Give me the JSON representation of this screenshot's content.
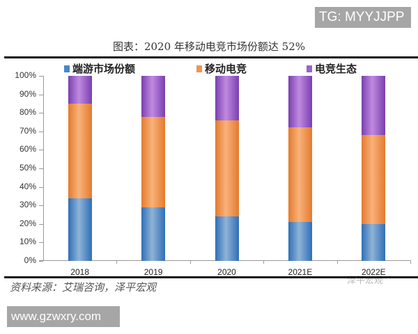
{
  "watermark_top": "TG: MYYJJPP",
  "watermark_bottom": "www.gzwxry.com",
  "watermark_logo": "泽平宏观",
  "source": "资料来源：艾瑞咨询，泽平宏观",
  "colors": {
    "client": "#4a86c8",
    "mobile": "#f0954f",
    "ecosystem": "#9b64c8"
  },
  "chart_data": {
    "type": "bar",
    "stacked": true,
    "title": "图表：2020 年移动电竞市场份额达 52%",
    "categories": [
      "2018",
      "2019",
      "2020",
      "2021E",
      "2022E"
    ],
    "series": [
      {
        "name": "端游市场份额",
        "values": [
          34,
          29,
          24,
          21,
          20
        ]
      },
      {
        "name": "移动电竞",
        "values": [
          51,
          49,
          52,
          51,
          48
        ]
      },
      {
        "name": "电竞生态",
        "values": [
          15,
          22,
          24,
          28,
          32
        ]
      }
    ],
    "yticks": [
      "0%",
      "10%",
      "20%",
      "30%",
      "40%",
      "50%",
      "60%",
      "70%",
      "80%",
      "90%",
      "100%"
    ],
    "ylim": [
      0,
      100
    ],
    "xlabel": "",
    "ylabel": "",
    "legend_position": "top",
    "grid": false
  }
}
